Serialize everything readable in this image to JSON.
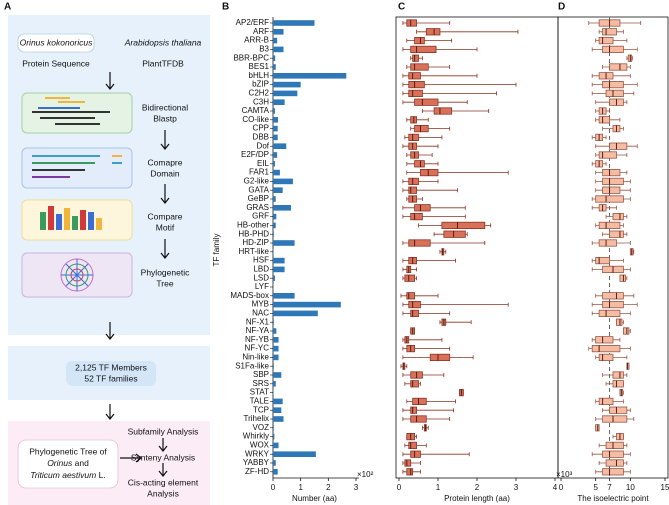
{
  "panel_labels": [
    "A",
    "B",
    "C",
    "D"
  ],
  "workflow": {
    "species": [
      "Orinus kokonoricus",
      "Arabidopsis thaliana"
    ],
    "sources": [
      "Protein Sequence",
      "PlantTFDB"
    ],
    "steps": [
      [
        "Bidirectional",
        "Blastp"
      ],
      [
        "Comapre",
        "Domain"
      ],
      [
        "Compare",
        "Motif"
      ],
      [
        "Phylogenetic",
        "Tree"
      ]
    ],
    "summary": [
      "2,125 TF Members",
      "52 TF families"
    ],
    "analyses": [
      [
        "Subfamily Analysis"
      ],
      [
        "Synteny Analysis"
      ],
      [
        "Cis-acting element",
        "Analysis"
      ]
    ],
    "tree_label": [
      "Phylogenetic Tree of",
      "Orinus",
      "and",
      "Triticum aestivum",
      "L."
    ]
  },
  "chart_data": [
    {
      "type": "bar",
      "orientation": "horizontal",
      "y_label": "TF family",
      "x_label": "Number (aa)",
      "x_multiplier": "×10²",
      "color": "#2f78b7",
      "categories": [
        "AP2/ERF",
        "ARF",
        "ARR-B",
        "B3",
        "BBR-BPC",
        "BES1",
        "bHLH",
        "bZIP",
        "C2H2",
        "C3H",
        "CAMTA",
        "CO-like",
        "CPP",
        "DBB",
        "Dof",
        "E2F/DP",
        "EIL",
        "FAR1",
        "G2-like",
        "GATA",
        "GeBP",
        "GRAS",
        "GRF",
        "HB-other",
        "HB-PHD",
        "HD-ZIP",
        "HRT-like",
        "HSF",
        "LBD",
        "LSD",
        "LYF",
        "MADS-box",
        "MYB",
        "NAC",
        "NF-X1",
        "NF-YA",
        "NF-YB",
        "NF-YC",
        "Nin-like",
        "S1Fa-like",
        "SBP",
        "SRS",
        "STAT",
        "TALE",
        "TCP",
        "Trihelix",
        "VOZ",
        "Whirkly",
        "WOX",
        "WRKY",
        "YABBY",
        "ZF-HD"
      ],
      "values": [
        1.5,
        0.38,
        0.15,
        0.38,
        0.08,
        0.1,
        2.65,
        1.0,
        0.88,
        0.42,
        0.07,
        0.18,
        0.17,
        0.17,
        0.48,
        0.15,
        0.07,
        0.25,
        0.72,
        0.35,
        0.1,
        0.65,
        0.12,
        0.1,
        0.03,
        0.78,
        0.02,
        0.42,
        0.42,
        0.07,
        0.01,
        0.78,
        2.45,
        1.62,
        0.03,
        0.12,
        0.2,
        0.2,
        0.2,
        0.03,
        0.3,
        0.1,
        0.02,
        0.35,
        0.3,
        0.38,
        0.03,
        0.05,
        0.2,
        1.55,
        0.1,
        0.17
      ],
      "xlim": [
        0,
        3
      ],
      "xticks": [
        0,
        1,
        2,
        3
      ]
    },
    {
      "type": "box",
      "x_label": "Protein length (aa)",
      "x_multiplier": "×10³",
      "color": "#d9705a",
      "edge_color": "#8a3424",
      "whisker_low": [
        0.1,
        0.45,
        0.2,
        0.1,
        0.3,
        0.2,
        0.1,
        0.1,
        0.1,
        0.1,
        0.6,
        0.2,
        0.3,
        0.15,
        0.1,
        0.2,
        0.2,
        0.2,
        0.1,
        0.1,
        0.2,
        0.1,
        0.1,
        0.5,
        0.9,
        0.1,
        1.05,
        0.1,
        0.1,
        0.1,
        null,
        0.05,
        0.1,
        0.1,
        1.05,
        0.3,
        0.1,
        0.1,
        0.1,
        0.05,
        0.1,
        0.15,
        1.55,
        0.2,
        0.1,
        0.1,
        0.6,
        0.2,
        0.15,
        0.1,
        0.1,
        0.1
      ],
      "q1": [
        0.2,
        0.7,
        0.4,
        0.3,
        0.35,
        0.3,
        0.25,
        0.25,
        0.25,
        0.4,
        0.9,
        0.3,
        0.4,
        0.25,
        0.25,
        0.3,
        0.4,
        0.55,
        0.25,
        0.25,
        0.25,
        0.4,
        0.3,
        1.1,
        1.15,
        0.25,
        1.1,
        0.25,
        0.2,
        0.15,
        null,
        0.2,
        0.25,
        0.3,
        1.1,
        0.3,
        0.15,
        0.2,
        0.8,
        0.1,
        0.3,
        0.3,
        1.55,
        0.35,
        0.3,
        0.3,
        0.65,
        0.2,
        0.25,
        0.3,
        0.15,
        0.2
      ],
      "median": [
        0.3,
        0.9,
        0.55,
        0.45,
        0.4,
        0.4,
        0.35,
        0.4,
        0.35,
        0.6,
        1.05,
        0.38,
        0.55,
        0.35,
        0.35,
        0.4,
        0.55,
        0.75,
        0.35,
        0.3,
        0.35,
        0.55,
        0.4,
        1.5,
        1.4,
        0.4,
        1.12,
        0.35,
        0.25,
        0.25,
        null,
        0.25,
        0.35,
        0.35,
        1.15,
        0.35,
        0.2,
        0.3,
        1.0,
        0.12,
        0.45,
        0.35,
        1.6,
        0.5,
        0.35,
        0.45,
        0.68,
        0.3,
        0.3,
        0.4,
        0.2,
        0.3
      ],
      "q3": [
        0.45,
        1.05,
        0.65,
        0.95,
        0.5,
        0.75,
        0.55,
        0.65,
        0.6,
        1.0,
        1.35,
        0.45,
        0.75,
        0.5,
        0.45,
        0.5,
        0.65,
        1.0,
        0.5,
        0.45,
        0.45,
        0.8,
        0.6,
        2.2,
        1.7,
        0.8,
        1.15,
        0.45,
        0.3,
        0.4,
        null,
        0.4,
        0.55,
        0.5,
        1.2,
        0.4,
        0.25,
        0.4,
        1.3,
        0.15,
        0.6,
        0.5,
        1.65,
        0.7,
        0.45,
        0.7,
        0.7,
        0.4,
        0.45,
        0.55,
        0.3,
        0.35
      ],
      "whisker_high": [
        1.3,
        3.05,
        1.35,
        2.0,
        0.6,
        1.3,
        2.0,
        3.0,
        2.5,
        1.75,
        2.3,
        0.75,
        1.3,
        1.1,
        1.0,
        0.85,
        1.0,
        2.8,
        1.0,
        1.5,
        0.6,
        1.7,
        1.7,
        2.35,
        1.75,
        2.2,
        1.2,
        1.45,
        0.45,
        0.45,
        null,
        1.0,
        2.8,
        1.3,
        1.85,
        0.4,
        1.1,
        1.3,
        1.9,
        0.2,
        1.15,
        0.55,
        1.65,
        1.45,
        1.4,
        1.3,
        0.75,
        0.45,
        0.7,
        1.8,
        0.55,
        0.55
      ],
      "xlim": [
        0,
        4
      ],
      "xticks": [
        0,
        1,
        2,
        3,
        4
      ]
    },
    {
      "type": "box",
      "x_label": "The isoelectric point",
      "color": "#f5bca4",
      "edge_color": "#9a5646",
      "reference_x": 7,
      "whisker_low": [
        4,
        5.5,
        5,
        4.5,
        9.5,
        6,
        4.5,
        4.5,
        4.5,
        5,
        5,
        5,
        6,
        4.5,
        5,
        5,
        4.5,
        5,
        5,
        5,
        4.5,
        4.5,
        6.5,
        5,
        6,
        4.5,
        10,
        4.5,
        4.5,
        8.5,
        null,
        5,
        4.5,
        4.5,
        8,
        9,
        4.5,
        4,
        5,
        9.5,
        6,
        6.5,
        8.5,
        5,
        6,
        5,
        5,
        7.5,
        5.5,
        4.5,
        5.5,
        5
      ],
      "q1": [
        5.5,
        6,
        5.5,
        6,
        9.7,
        7,
        5.5,
        6,
        6.5,
        7,
        5.5,
        5.5,
        7.5,
        5,
        7,
        5.5,
        5,
        6,
        6,
        6,
        5,
        5.5,
        7.5,
        5.5,
        7,
        5.5,
        10,
        5,
        6,
        8.5,
        null,
        6,
        6,
        5.5,
        8,
        9,
        5,
        4.5,
        5.5,
        9.5,
        7.5,
        7.5,
        8.5,
        5.5,
        7,
        6,
        5,
        8,
        6.5,
        6,
        6.5,
        6
      ],
      "median": [
        7,
        6.5,
        6,
        7,
        10,
        8.5,
        6.5,
        7,
        7.5,
        8,
        6,
        6,
        8,
        5.5,
        8,
        6,
        5.5,
        7,
        7,
        7,
        6.5,
        6,
        8.5,
        6.5,
        8.5,
        6.5,
        10.2,
        5.5,
        7.5,
        9,
        null,
        8,
        7,
        6.5,
        8.5,
        9.5,
        6,
        5.5,
        6,
        9.6,
        8.5,
        8,
        8.7,
        6,
        8,
        7.5,
        5.3,
        8.5,
        7.5,
        7,
        8,
        7
      ],
      "q3": [
        8.5,
        8,
        7.5,
        9,
        10.2,
        9.5,
        7.5,
        9,
        9,
        9,
        6.5,
        7,
        8.5,
        6,
        9.5,
        8,
        6,
        8.5,
        9,
        8.5,
        9,
        6.5,
        9,
        8.5,
        9,
        8,
        10.4,
        7,
        9,
        9.3,
        null,
        9,
        9,
        8.5,
        8.8,
        9.8,
        7.5,
        8.5,
        7.5,
        9.8,
        9,
        9,
        8.9,
        7.5,
        9.5,
        9.5,
        5.5,
        9,
        9,
        9,
        9,
        9
      ],
      "whisker_high": [
        11.5,
        9,
        9.5,
        11,
        10.3,
        10,
        10,
        11,
        10.5,
        9.5,
        7,
        8.5,
        9,
        6.5,
        11,
        9.5,
        6.5,
        9.5,
        10,
        10,
        10,
        8,
        9.5,
        9,
        9.5,
        10,
        10.5,
        9,
        10,
        9.5,
        null,
        10.5,
        11,
        10,
        9,
        10,
        8.5,
        10,
        9.5,
        9.8,
        9.5,
        9,
        9,
        9,
        10,
        10.5,
        5.5,
        9,
        9.5,
        10,
        9.5,
        10
      ],
      "xlim": [
        0,
        15
      ],
      "xticks": [
        0,
        5,
        7,
        10,
        15
      ]
    }
  ]
}
